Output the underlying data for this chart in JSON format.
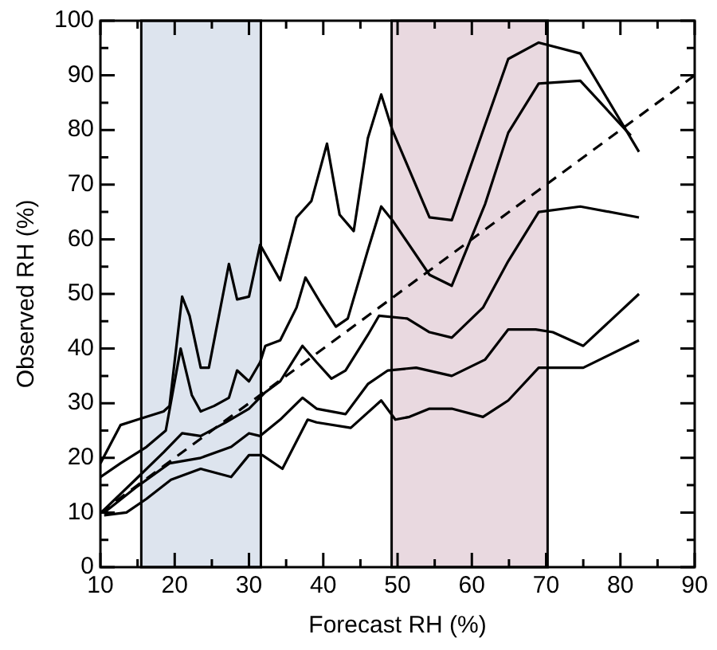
{
  "chart_data": {
    "type": "line",
    "xlabel": "Forecast RH (%)",
    "ylabel": "Observed RH (%)",
    "xlim": [
      10,
      90
    ],
    "ylim": [
      0,
      100
    ],
    "xticks": [
      10,
      {
        "value": 15,
        "label": null
      },
      20,
      {
        "value": 25,
        "label": null
      },
      30,
      {
        "value": 35,
        "label": null
      },
      40,
      {
        "value": 45,
        "label": null
      },
      50,
      {
        "value": 55,
        "label": null
      },
      60,
      {
        "value": 65,
        "label": null
      },
      70,
      {
        "value": 75,
        "label": null
      },
      80,
      {
        "value": 85,
        "label": null
      },
      90
    ],
    "yticks": [
      0,
      {
        "value": 5,
        "label": null
      },
      10,
      {
        "value": 15,
        "label": null
      },
      20,
      {
        "value": 25,
        "label": null
      },
      30,
      {
        "value": 35,
        "label": null
      },
      40,
      {
        "value": 45,
        "label": null
      },
      50,
      {
        "value": 55,
        "label": null
      },
      60,
      {
        "value": 65,
        "label": null
      },
      70,
      {
        "value": 75,
        "label": null
      },
      80,
      {
        "value": 85,
        "label": null
      },
      90,
      {
        "value": 95,
        "label": null
      },
      100
    ],
    "grid": false,
    "legend": false,
    "marker": "none",
    "bands": [
      {
        "axis": "x",
        "from": 15.5,
        "to": 31.6,
        "color": "#dde4ee"
      },
      {
        "axis": "x",
        "from": 49.2,
        "to": 70.2,
        "color": "#e9d9e0"
      }
    ],
    "series": [
      {
        "color": "#000000",
        "x": [
          10,
          12.7,
          15,
          18.5,
          19.3,
          21,
          22,
          23.5,
          24.6,
          27.3,
          28.4,
          30,
          31.5,
          34.2,
          36.4,
          38.4,
          40.5,
          42.2,
          44.1,
          46,
          47.8,
          49.3,
          54.3,
          57.3,
          61.8,
          64.9,
          69,
          74.6,
          82.5
        ],
        "values": [
          19,
          26,
          27,
          28.5,
          29.5,
          49.5,
          46,
          36.5,
          36.5,
          55.5,
          49,
          49.5,
          59,
          52.5,
          64,
          67,
          77.5,
          64.5,
          61.5,
          78.5,
          86.5,
          80,
          64,
          63.5,
          81,
          93,
          96,
          94,
          76
        ]
      },
      {
        "color": "#000000",
        "x": [
          10,
          12.7,
          16.2,
          18.8,
          20.8,
          22.3,
          23.5,
          25.3,
          27.3,
          28.4,
          30,
          31.5,
          32.2,
          34.2,
          36.4,
          37.6,
          39.8,
          41.7,
          43.3,
          46,
          47.8,
          49.3,
          54.3,
          57.3,
          61.8,
          64.9,
          69,
          74.6,
          81.4
        ],
        "values": [
          16.5,
          19,
          22,
          25,
          40,
          31.5,
          28.5,
          29.5,
          31,
          36,
          34,
          37.5,
          40.5,
          41.5,
          47.5,
          53,
          48,
          44,
          45.5,
          58,
          66,
          63.5,
          53.5,
          51.5,
          66.5,
          79.5,
          88.5,
          89,
          79
        ]
      },
      {
        "color": "#000000",
        "x": [
          10.5,
          14.7,
          18.5,
          21,
          23.5,
          26.9,
          30,
          32.2,
          34.2,
          37.2,
          39.1,
          41.1,
          43,
          46,
          47.5,
          51.3,
          54.3,
          57.3,
          61.5,
          64.9,
          69,
          74.6,
          82.5
        ],
        "values": [
          10.5,
          16,
          21,
          24.5,
          24,
          26.5,
          29,
          32,
          34,
          40.5,
          37.5,
          34.5,
          36,
          42.5,
          46,
          45.5,
          43,
          42,
          47.5,
          56,
          65,
          66,
          64
        ]
      },
      {
        "color": "#000000",
        "x": [
          10.5,
          14.7,
          19.3,
          23.5,
          27.6,
          30,
          31.5,
          34.2,
          37.2,
          39.1,
          43,
          46,
          48.7,
          52.5,
          57.3,
          61.8,
          64.9,
          68.6,
          70.9,
          75,
          82.5
        ],
        "values": [
          10,
          14.5,
          19,
          20,
          22,
          24.5,
          24,
          27,
          31,
          29,
          28,
          33.5,
          36,
          36.5,
          35,
          38,
          43.5,
          43.5,
          43,
          40.5,
          50
        ]
      },
      {
        "color": "#000000",
        "x": [
          10.5,
          13.5,
          16.2,
          19.5,
          23.5,
          27.6,
          30,
          31.8,
          34.5,
          37.9,
          39.1,
          43.7,
          47.8,
          49.7,
          51.6,
          54.3,
          57.3,
          61.5,
          64.9,
          69,
          75,
          82.5
        ],
        "values": [
          9.5,
          10,
          12.5,
          16,
          18,
          16.5,
          20.5,
          20.5,
          18,
          27,
          26.5,
          25.5,
          30.5,
          27,
          27.5,
          29,
          29,
          27.5,
          30.5,
          36.5,
          36.5,
          41.5
        ]
      },
      {
        "color": "#000000",
        "line_style": "dashed",
        "x": [
          10,
          90
        ],
        "values": [
          10,
          90
        ]
      }
    ]
  }
}
